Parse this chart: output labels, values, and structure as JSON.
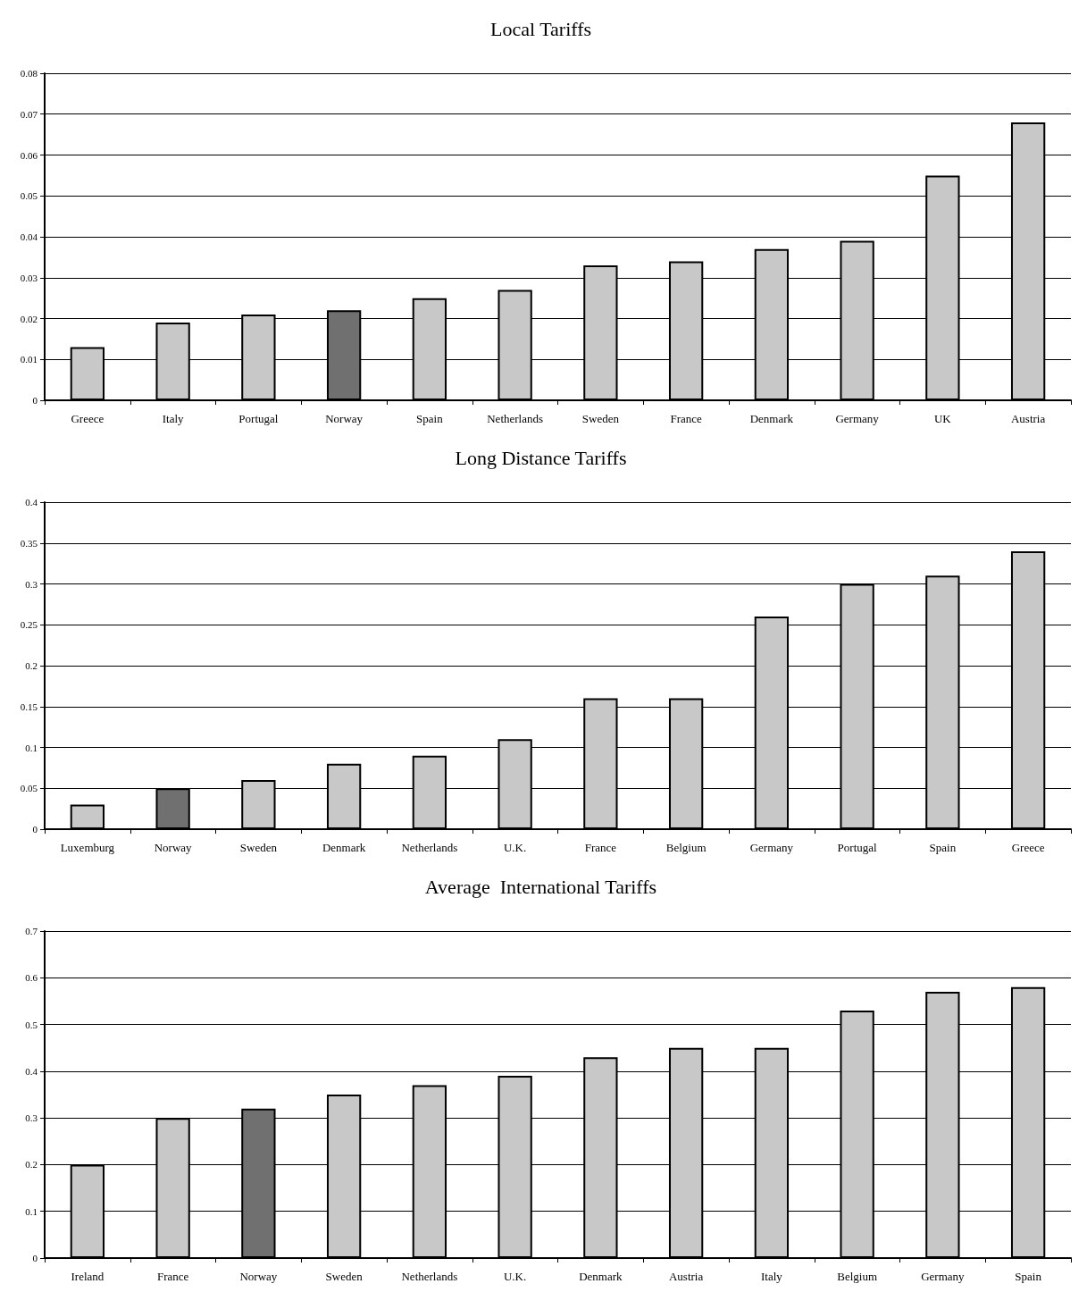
{
  "chart_data": [
    {
      "type": "bar",
      "title": "Local Tariffs",
      "categories": [
        "Greece",
        "Italy",
        "Portugal",
        "Norway",
        "Spain",
        "Netherlands",
        "Sweden",
        "France",
        "Denmark",
        "Germany",
        "UK",
        "Austria"
      ],
      "values": [
        0.013,
        0.019,
        0.021,
        0.022,
        0.025,
        0.027,
        0.033,
        0.034,
        0.037,
        0.039,
        0.055,
        0.068
      ],
      "colors": [
        "#c8c8c8",
        "#c8c8c8",
        "#c8c8c8",
        "#707070",
        "#c8c8c8",
        "#c8c8c8",
        "#c8c8c8",
        "#c8c8c8",
        "#c8c8c8",
        "#c8c8c8",
        "#c8c8c8",
        "#c8c8c8"
      ],
      "ylim": [
        0,
        0.08
      ],
      "yticks": [
        0,
        0.01,
        0.02,
        0.03,
        0.04,
        0.05,
        0.06,
        0.07,
        0.08
      ],
      "grid": "y"
    },
    {
      "type": "bar",
      "title": "Long Distance Tariffs",
      "categories": [
        "Luxemburg",
        "Norway",
        "Sweden",
        "Denmark",
        "Netherlands",
        "U.K.",
        "France",
        "Belgium",
        "Germany",
        "Portugal",
        "Spain",
        "Greece"
      ],
      "values": [
        0.03,
        0.05,
        0.06,
        0.08,
        0.09,
        0.11,
        0.16,
        0.16,
        0.26,
        0.3,
        0.31,
        0.34
      ],
      "colors": [
        "#c8c8c8",
        "#707070",
        "#c8c8c8",
        "#c8c8c8",
        "#c8c8c8",
        "#c8c8c8",
        "#c8c8c8",
        "#c8c8c8",
        "#c8c8c8",
        "#c8c8c8",
        "#c8c8c8",
        "#c8c8c8"
      ],
      "ylim": [
        0,
        0.4
      ],
      "yticks": [
        0,
        0.05,
        0.1,
        0.15,
        0.2,
        0.25,
        0.3,
        0.35,
        0.4
      ],
      "grid": "y"
    },
    {
      "type": "bar",
      "title": "Average  International Tariffs",
      "categories": [
        "Ireland",
        "France",
        "Norway",
        "Sweden",
        "Netherlands",
        "U.K.",
        "Denmark",
        "Austria",
        "Italy",
        "Belgium",
        "Germany",
        "Spain"
      ],
      "values": [
        0.2,
        0.3,
        0.32,
        0.35,
        0.37,
        0.39,
        0.43,
        0.45,
        0.45,
        0.53,
        0.57,
        0.58
      ],
      "colors": [
        "#c8c8c8",
        "#c8c8c8",
        "#707070",
        "#c8c8c8",
        "#c8c8c8",
        "#c8c8c8",
        "#c8c8c8",
        "#c8c8c8",
        "#c8c8c8",
        "#c8c8c8",
        "#c8c8c8",
        "#c8c8c8"
      ],
      "ylim": [
        0,
        0.7
      ],
      "yticks": [
        0,
        0.1,
        0.2,
        0.3,
        0.4,
        0.5,
        0.6,
        0.7
      ],
      "grid": "y"
    }
  ]
}
